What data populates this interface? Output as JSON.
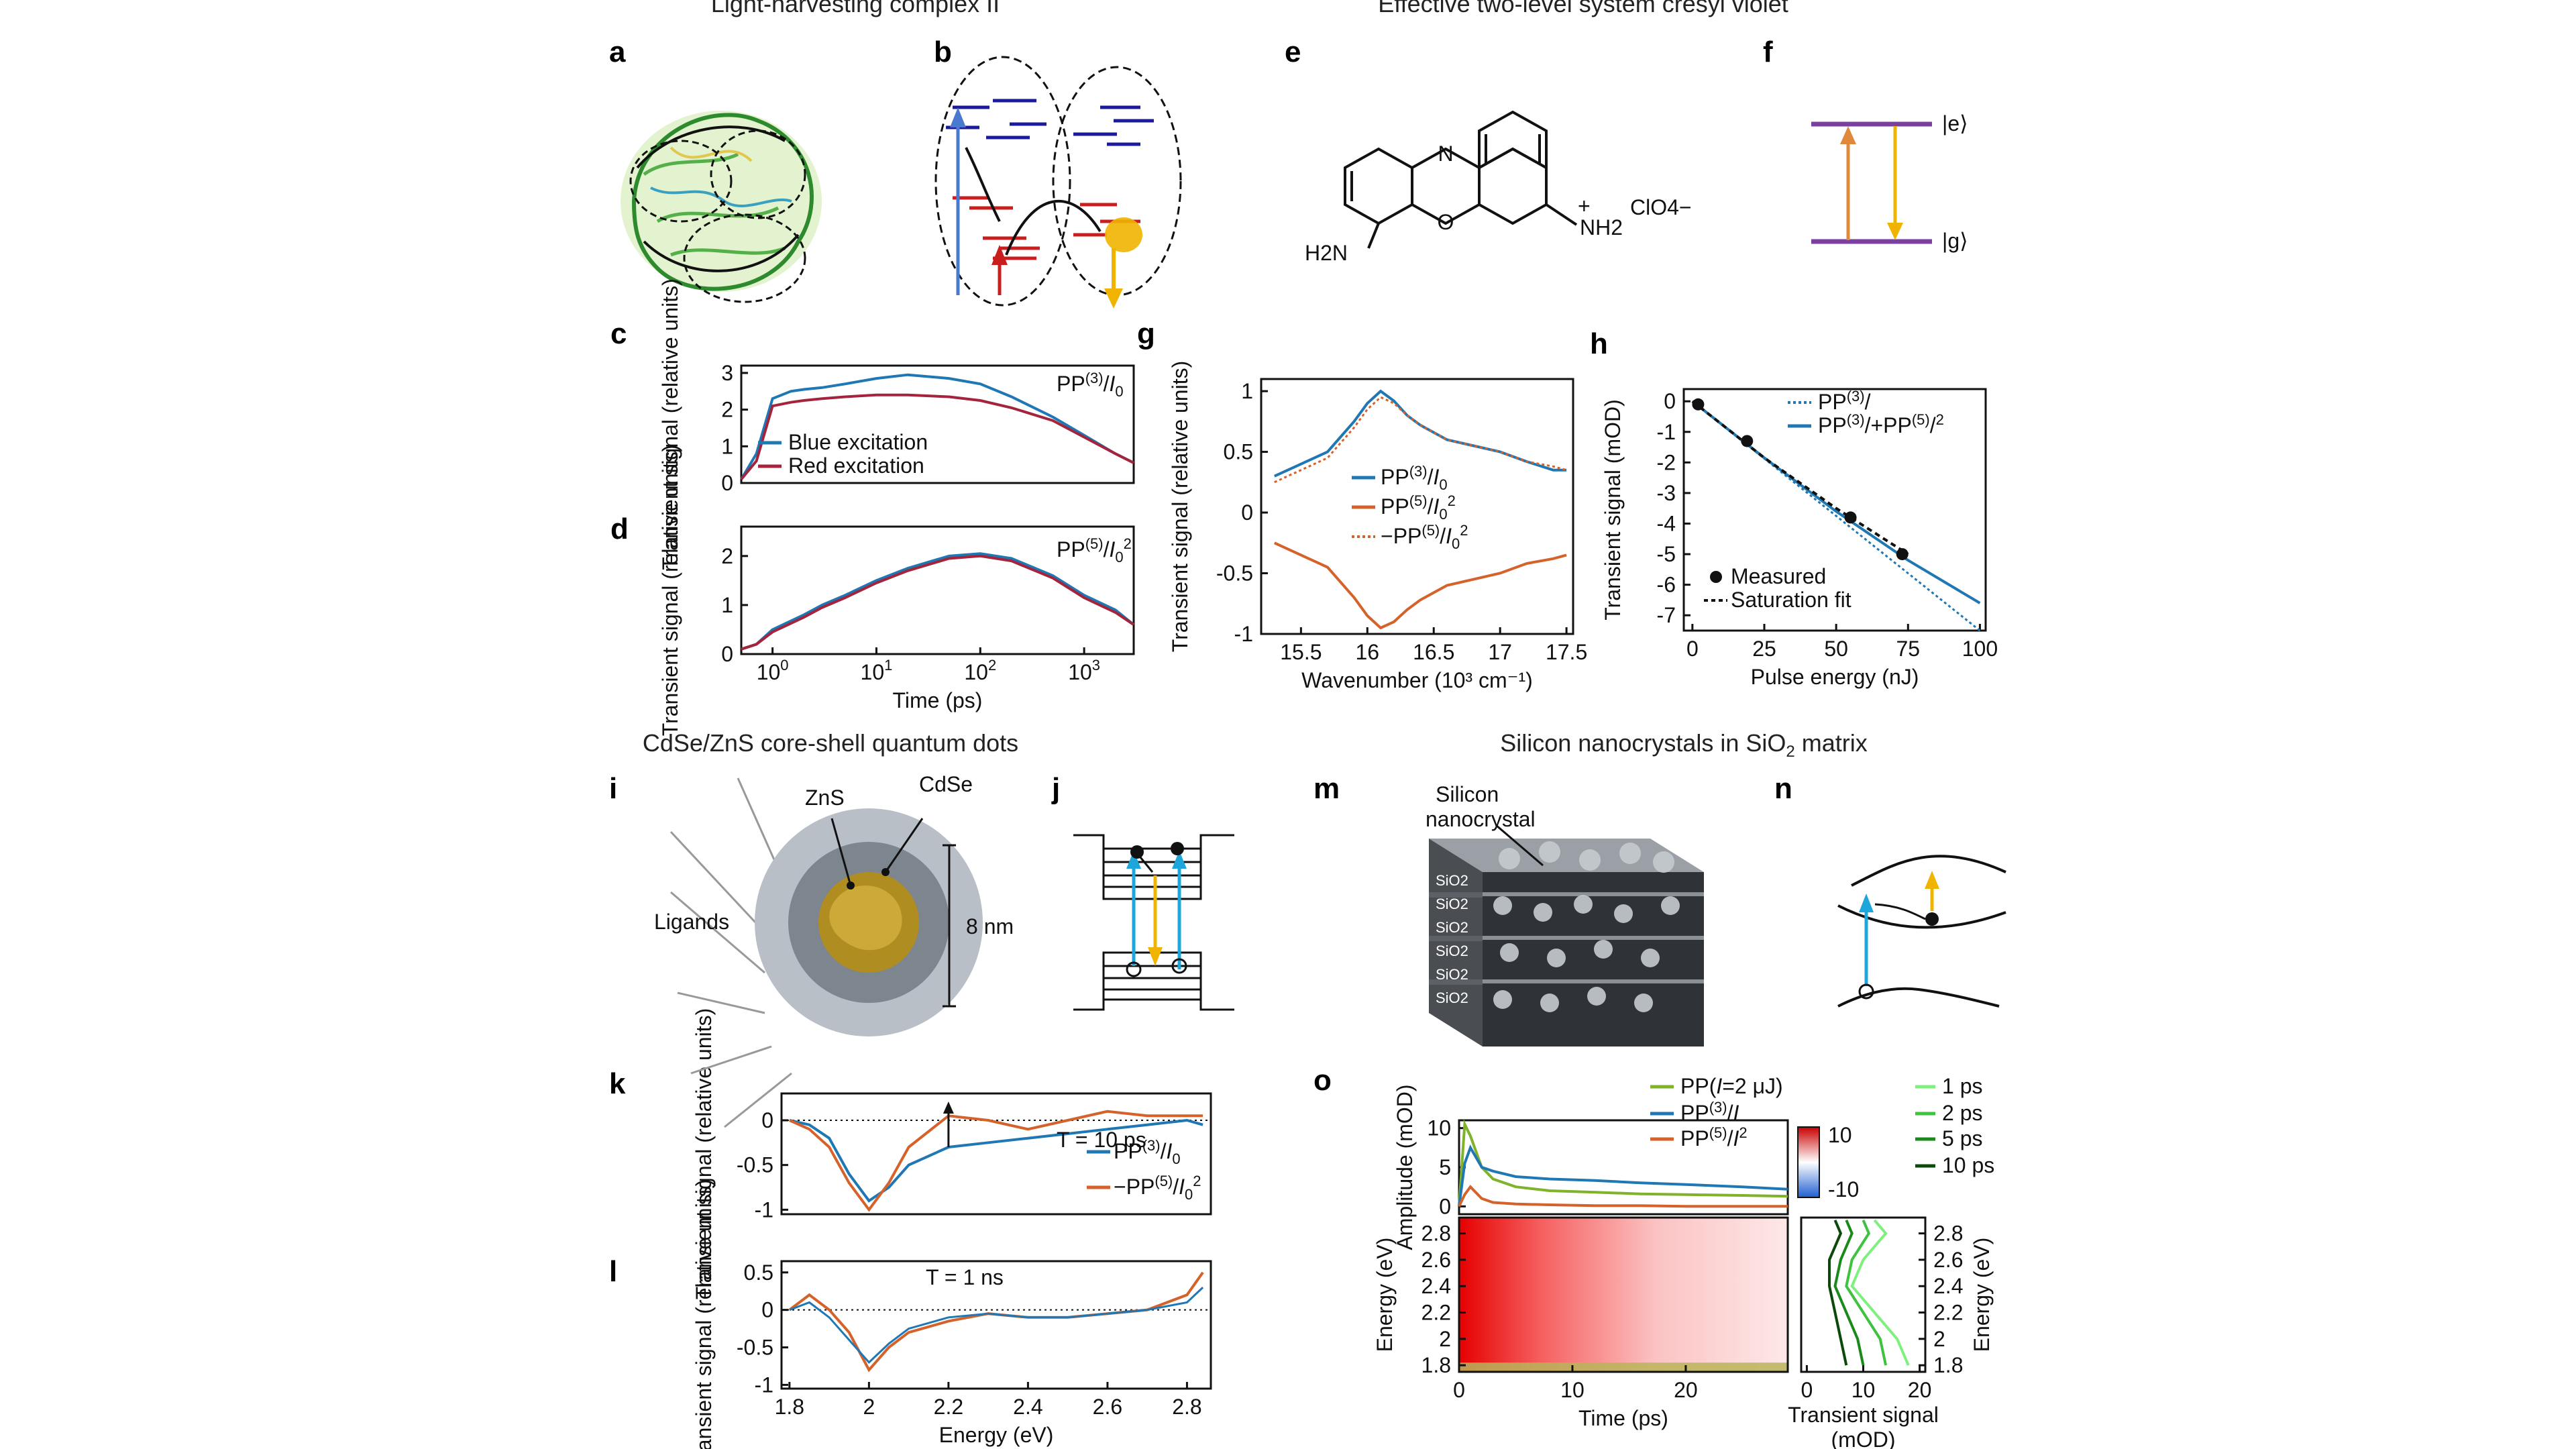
{
  "sections": {
    "top_left": "Light-harvesting complex II",
    "top_right": "Effective two-level system cresyl violet",
    "bottom_left": "CdSe/ZnS core-shell quantum dots",
    "bottom_right_pre": "Silicon nanocrystals in SiO",
    "bottom_right_sub": "2",
    "bottom_right_post": " matrix"
  },
  "panel_letters": [
    "a",
    "b",
    "c",
    "d",
    "e",
    "f",
    "g",
    "h",
    "i",
    "j",
    "k",
    "l",
    "m",
    "n",
    "o"
  ],
  "panel_e": {
    "left_group": "H2N",
    "right_group": "NH2",
    "plus": "+",
    "counterion": "ClO4−",
    "ring_n": "N",
    "ring_o": "O"
  },
  "panel_f": {
    "upper_state": "|e⟩",
    "lower_state": "|g⟩"
  },
  "panel_i": {
    "shell": "ZnS",
    "core": "CdSe",
    "ligands": "Ligands",
    "size": "8 nm"
  },
  "panel_m": {
    "label_line1": "Silicon",
    "label_line2": "nanocrystal",
    "layer": "SiO2"
  },
  "colors": {
    "blue": "#1f77b4",
    "red": "#a3243b",
    "orange": "#d4622a",
    "purple": "#7b3fa0",
    "gold": "#f0b400",
    "cyan": "#1ca6d9"
  },
  "chart_data": [
    {
      "panel": "c",
      "type": "line",
      "ylabel": "Transient signal (relative units)",
      "annotation": "PP(3)/I0",
      "x": [
        0.5,
        0.7,
        1,
        1.5,
        2,
        3,
        5,
        10,
        20,
        50,
        100,
        200,
        500,
        1000,
        2000,
        3000
      ],
      "series": [
        {
          "name": "Blue excitation",
          "values": [
            0.1,
            0.8,
            2.3,
            2.5,
            2.55,
            2.6,
            2.7,
            2.85,
            2.95,
            2.85,
            2.7,
            2.35,
            1.8,
            1.3,
            0.8,
            0.55
          ]
        },
        {
          "name": "Red excitation",
          "values": [
            0.1,
            0.6,
            2.1,
            2.2,
            2.25,
            2.3,
            2.35,
            2.4,
            2.4,
            2.35,
            2.25,
            2.05,
            1.7,
            1.25,
            0.8,
            0.55
          ]
        }
      ],
      "xscale": "log",
      "xlim": [
        0.5,
        3000
      ],
      "ylim": [
        0,
        3.2
      ],
      "yticks": [
        0,
        1,
        2,
        3
      ]
    },
    {
      "panel": "d",
      "type": "line",
      "xlabel": "Time (ps)",
      "ylabel": "Transient signal (relative units)",
      "annotation": "PP(5)/I0²",
      "x": [
        0.5,
        0.7,
        1,
        2,
        3,
        5,
        10,
        20,
        50,
        100,
        200,
        500,
        1000,
        2000,
        3000
      ],
      "series": [
        {
          "values": [
            0.1,
            0.2,
            0.5,
            0.8,
            1.0,
            1.2,
            1.5,
            1.75,
            2.0,
            2.05,
            1.95,
            1.6,
            1.2,
            0.9,
            0.6
          ]
        },
        {
          "values": [
            0.1,
            0.2,
            0.45,
            0.75,
            0.95,
            1.15,
            1.45,
            1.7,
            1.95,
            2.0,
            1.9,
            1.55,
            1.15,
            0.85,
            0.6
          ]
        }
      ],
      "xscale": "log",
      "xlim": [
        0.5,
        3000
      ],
      "ylim": [
        0,
        2.6
      ],
      "yticks": [
        0,
        1,
        2
      ],
      "xticks": [
        {
          "v": 1,
          "b": "10",
          "e": "0"
        },
        {
          "v": 10,
          "b": "10",
          "e": "1"
        },
        {
          "v": 100,
          "b": "10",
          "e": "2"
        },
        {
          "v": 1000,
          "b": "10",
          "e": "3"
        }
      ]
    },
    {
      "panel": "g",
      "type": "line",
      "xlabel": "Wavenumber (10³ cm⁻¹)",
      "ylabel": "Transient signal (relative units)",
      "x": [
        15.3,
        15.5,
        15.7,
        15.9,
        16.0,
        16.1,
        16.2,
        16.3,
        16.4,
        16.6,
        16.8,
        17.0,
        17.2,
        17.4,
        17.5
      ],
      "series": [
        {
          "name": "PP(3)/I0",
          "values": [
            0.3,
            0.4,
            0.5,
            0.75,
            0.9,
            1.0,
            0.92,
            0.8,
            0.72,
            0.6,
            0.55,
            0.5,
            0.42,
            0.35,
            0.35
          ]
        },
        {
          "name": "PP(5)/I0²",
          "values": [
            -0.25,
            -0.35,
            -0.45,
            -0.7,
            -0.85,
            -0.95,
            -0.9,
            -0.8,
            -0.72,
            -0.6,
            -0.55,
            -0.5,
            -0.42,
            -0.38,
            -0.35
          ]
        },
        {
          "name": "−PP(5)/I0²",
          "values": [
            0.25,
            0.35,
            0.45,
            0.7,
            0.85,
            0.95,
            0.9,
            0.8,
            0.72,
            0.6,
            0.55,
            0.5,
            0.42,
            0.38,
            0.35
          ]
        }
      ],
      "xlim": [
        15.2,
        17.55
      ],
      "ylim": [
        -1.0,
        1.1
      ],
      "xticks": [
        15.5,
        16.0,
        16.5,
        17.0,
        17.5
      ],
      "yticks": [
        -1.0,
        -0.5,
        0,
        0.5,
        1.0
      ]
    },
    {
      "panel": "h",
      "type": "scatter",
      "xlabel": "Pulse energy (nJ)",
      "ylabel": "Transient signal (mOD)",
      "points": [
        {
          "x": 2,
          "y": -0.1
        },
        {
          "x": 19,
          "y": -1.3
        },
        {
          "x": 55,
          "y": -3.8
        },
        {
          "x": 73,
          "y": -5.0
        }
      ],
      "series": [
        {
          "name": "PP(3)/I",
          "x": [
            0,
            100
          ],
          "values": [
            0,
            -7.5
          ]
        },
        {
          "name": "PP(3)/I+PP(5)/I²",
          "x": [
            0,
            25,
            50,
            75,
            100
          ],
          "values": [
            0,
            -1.85,
            -3.6,
            -5.2,
            -6.6
          ]
        },
        {
          "name": "Saturation fit",
          "x": [
            0,
            25,
            50,
            75
          ],
          "values": [
            0,
            -1.85,
            -3.5,
            -5.0
          ]
        }
      ],
      "legend_measured": "Measured",
      "xlim": [
        -3,
        102
      ],
      "ylim": [
        -7.5,
        0.4
      ],
      "xticks": [
        0,
        25,
        50,
        75,
        100
      ],
      "yticks": [
        0,
        -1,
        -2,
        -3,
        -4,
        -5,
        -6,
        -7
      ]
    },
    {
      "panel": "k",
      "type": "line",
      "ylabel": "Transient signal (relative units)",
      "annotation": "T = 10 ps",
      "x": [
        1.8,
        1.85,
        1.9,
        1.95,
        2.0,
        2.05,
        2.1,
        2.2,
        2.3,
        2.4,
        2.5,
        2.6,
        2.7,
        2.8,
        2.84
      ],
      "series": [
        {
          "name": "PP(3)/I0",
          "values": [
            0.0,
            -0.05,
            -0.2,
            -0.6,
            -0.9,
            -0.75,
            -0.5,
            -0.3,
            -0.25,
            -0.2,
            -0.15,
            -0.1,
            -0.05,
            0.0,
            -0.05
          ]
        },
        {
          "name": "−PP(5)/I0²",
          "values": [
            0.0,
            -0.1,
            -0.3,
            -0.7,
            -1.0,
            -0.7,
            -0.3,
            0.05,
            0.0,
            -0.1,
            0.0,
            0.1,
            0.05,
            0.05,
            0.05
          ]
        }
      ],
      "xlim": [
        1.78,
        2.86
      ],
      "ylim": [
        -1.05,
        0.3
      ],
      "yticks": [
        -1.0,
        -0.5,
        0
      ]
    },
    {
      "panel": "l",
      "type": "line",
      "xlabel": "Energy (eV)",
      "ylabel": "Transient signal (relative units)",
      "annotation": "T = 1 ns",
      "x": [
        1.8,
        1.85,
        1.9,
        1.95,
        2.0,
        2.05,
        2.1,
        2.2,
        2.3,
        2.4,
        2.5,
        2.6,
        2.7,
        2.8,
        2.84
      ],
      "series": [
        {
          "values": [
            0.0,
            0.2,
            0.0,
            -0.3,
            -0.8,
            -0.5,
            -0.3,
            -0.15,
            -0.05,
            -0.1,
            -0.1,
            -0.05,
            0.0,
            0.2,
            0.5
          ]
        },
        {
          "values": [
            0.0,
            0.1,
            -0.1,
            -0.4,
            -0.7,
            -0.45,
            -0.25,
            -0.1,
            -0.05,
            -0.1,
            -0.1,
            -0.05,
            0.0,
            0.1,
            0.3
          ]
        }
      ],
      "xlim": [
        1.78,
        2.86
      ],
      "ylim": [
        -1.05,
        0.65
      ],
      "xticks": [
        1.8,
        2.0,
        2.2,
        2.4,
        2.6,
        2.8
      ],
      "yticks": [
        -1.0,
        -0.5,
        0,
        0.5
      ]
    },
    {
      "panel": "o-top",
      "type": "line",
      "ylabel": "Amplitude (mOD)",
      "x": [
        0,
        0.5,
        1,
        2,
        3,
        5,
        8,
        12,
        16,
        20,
        25,
        29
      ],
      "series": [
        {
          "name": "PP(I=2 μJ)",
          "values": [
            0,
            10.5,
            9.0,
            5.0,
            3.5,
            2.5,
            2.0,
            1.8,
            1.6,
            1.5,
            1.4,
            1.3
          ]
        },
        {
          "name": "PP(3)/I",
          "values": [
            0,
            5.5,
            7.5,
            5.0,
            4.5,
            3.8,
            3.5,
            3.3,
            3.0,
            2.8,
            2.5,
            2.2
          ]
        },
        {
          "name": "PP(5)/I²",
          "values": [
            0,
            1.5,
            2.5,
            1.0,
            0.5,
            0.3,
            0.2,
            0.1,
            0.1,
            0.0,
            0.0,
            0.0
          ]
        }
      ],
      "xlim": [
        0,
        29
      ],
      "ylim": [
        -1,
        11
      ],
      "yticks": [
        0,
        5,
        10
      ]
    },
    {
      "panel": "o-map",
      "type": "heatmap",
      "xlabel": "Time (ps)",
      "ylabel": "Energy (eV)",
      "xlim": [
        0,
        29
      ],
      "ylim": [
        1.75,
        2.92
      ],
      "xticks": [
        0,
        10,
        20
      ],
      "yticks": [
        1.8,
        2.0,
        2.2,
        2.4,
        2.6,
        2.8
      ],
      "colorbar_ticks": [
        10,
        -10
      ]
    },
    {
      "panel": "o-side",
      "type": "line",
      "xlabel": "Transient signal (mOD)",
      "ylabel": "Energy (eV)",
      "energies": [
        1.8,
        2.0,
        2.2,
        2.4,
        2.6,
        2.8,
        2.9
      ],
      "series": [
        {
          "name": "1 ps",
          "values": [
            18,
            16,
            12,
            8,
            10,
            14,
            12
          ]
        },
        {
          "name": "2 ps",
          "values": [
            14,
            13,
            10,
            7,
            8,
            11,
            10
          ]
        },
        {
          "name": "5 ps",
          "values": [
            10,
            9,
            7,
            5,
            6,
            8,
            7
          ]
        },
        {
          "name": "10 ps",
          "values": [
            7,
            6,
            5,
            4,
            4,
            6,
            5
          ]
        }
      ],
      "xlim": [
        -1,
        21
      ],
      "ylim": [
        1.75,
        2.92
      ],
      "xticks": [
        0,
        10,
        20
      ],
      "yticks": [
        1.8,
        2.0,
        2.2,
        2.4,
        2.6,
        2.8
      ]
    }
  ]
}
